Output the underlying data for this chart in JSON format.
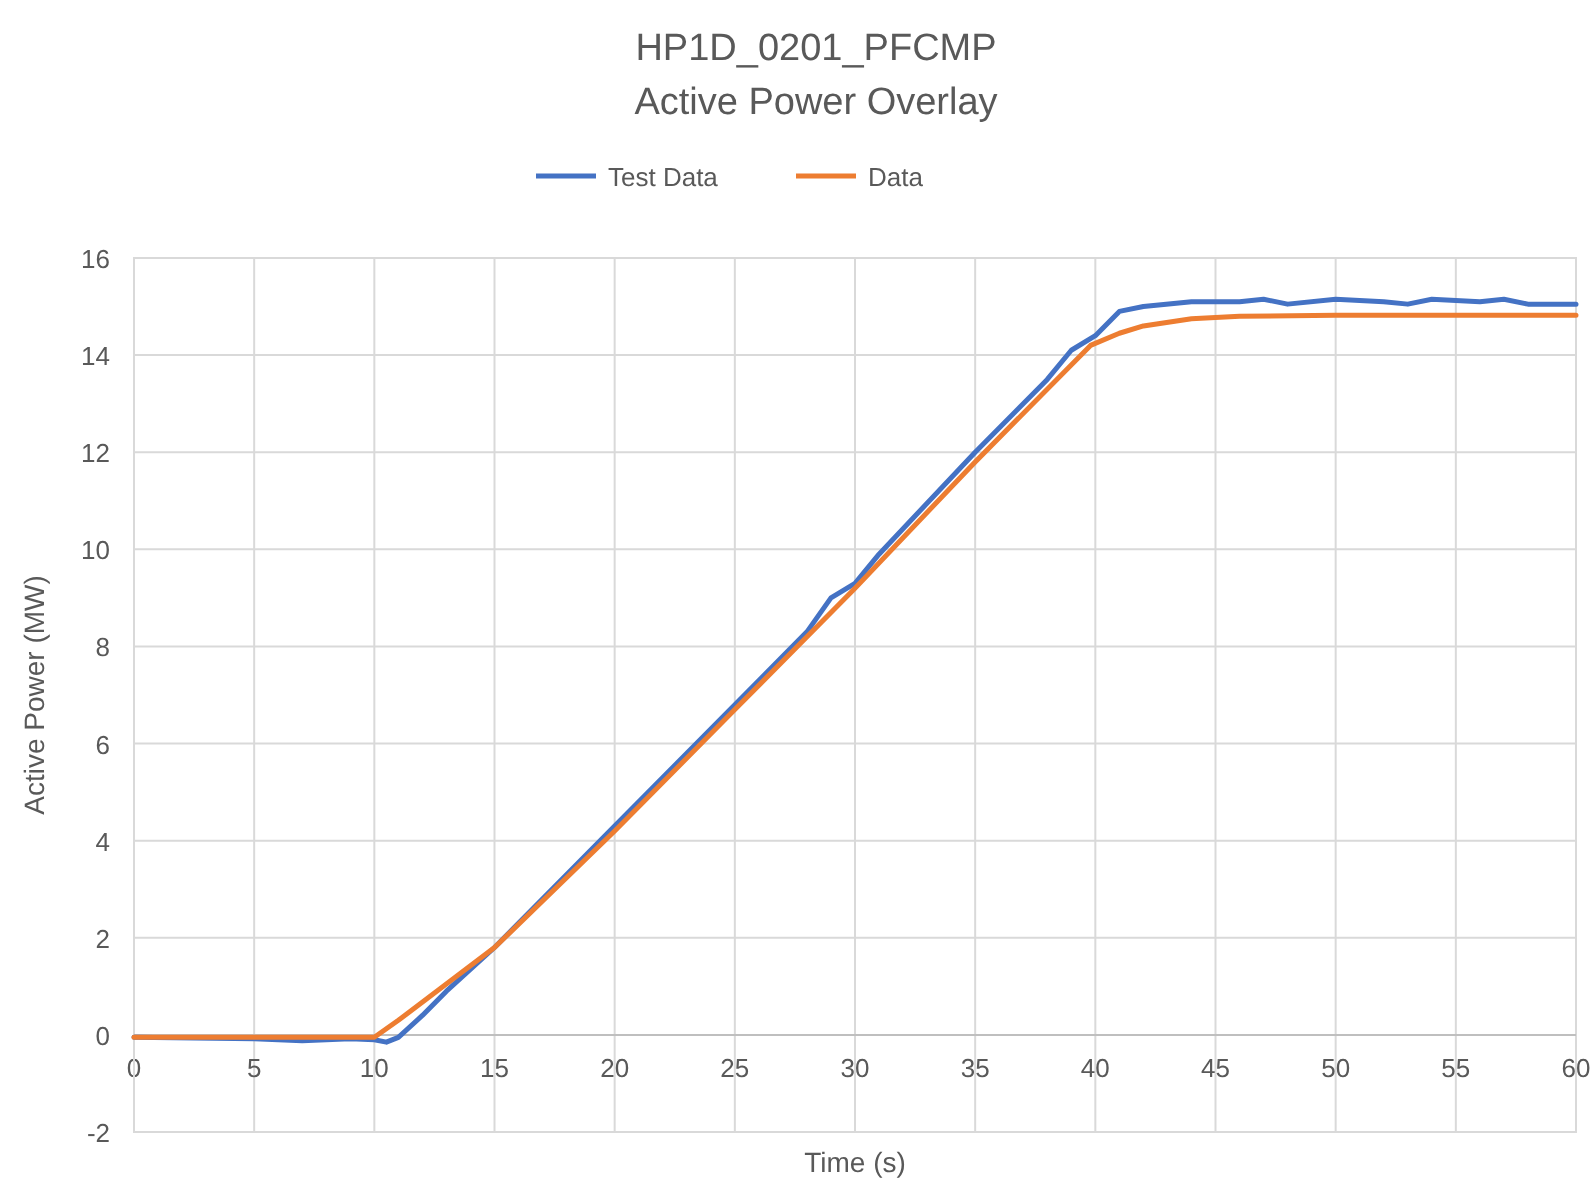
{
  "chart_data": {
    "type": "line",
    "title": "HP1D_0201_PFCMP",
    "subtitle": "Active Power Overlay",
    "xlabel": "Time (s)",
    "ylabel": "Active Power (MW)",
    "xlim": [
      0,
      60
    ],
    "xticks": [
      0,
      5,
      10,
      15,
      20,
      25,
      30,
      35,
      40,
      45,
      50,
      55,
      60
    ],
    "ylim": [
      -2,
      16
    ],
    "yticks": [
      -2,
      0,
      2,
      4,
      6,
      8,
      10,
      12,
      14,
      16
    ],
    "grid": true,
    "legend": "top",
    "marker": "none",
    "line_style": "solid",
    "series": [
      {
        "name": "Test Data",
        "color": "#4472c4",
        "x": [
          0,
          5,
          7,
          9,
          10,
          10.5,
          11,
          12,
          13,
          15,
          20,
          25,
          28,
          29,
          30,
          31,
          35,
          38,
          39,
          40,
          41,
          42,
          44,
          46,
          47,
          48,
          50,
          52,
          53,
          54,
          56,
          57,
          58,
          60
        ],
        "values": [
          -0.05,
          -0.08,
          -0.12,
          -0.08,
          -0.1,
          -0.15,
          -0.05,
          0.4,
          0.9,
          1.8,
          4.3,
          6.8,
          8.3,
          9.0,
          9.3,
          9.9,
          12.0,
          13.5,
          14.1,
          14.4,
          14.9,
          15.0,
          15.1,
          15.1,
          15.15,
          15.05,
          15.15,
          15.1,
          15.05,
          15.15,
          15.1,
          15.15,
          15.05,
          15.05
        ]
      },
      {
        "name": "Data",
        "color": "#ed7d31",
        "x": [
          0,
          10,
          11,
          15,
          20,
          25,
          30,
          35,
          39.8,
          41,
          42,
          44,
          46,
          50,
          60
        ],
        "values": [
          -0.05,
          -0.05,
          0.3,
          1.8,
          4.2,
          6.7,
          9.2,
          11.8,
          14.2,
          14.45,
          14.6,
          14.75,
          14.8,
          14.82,
          14.82
        ]
      }
    ]
  }
}
